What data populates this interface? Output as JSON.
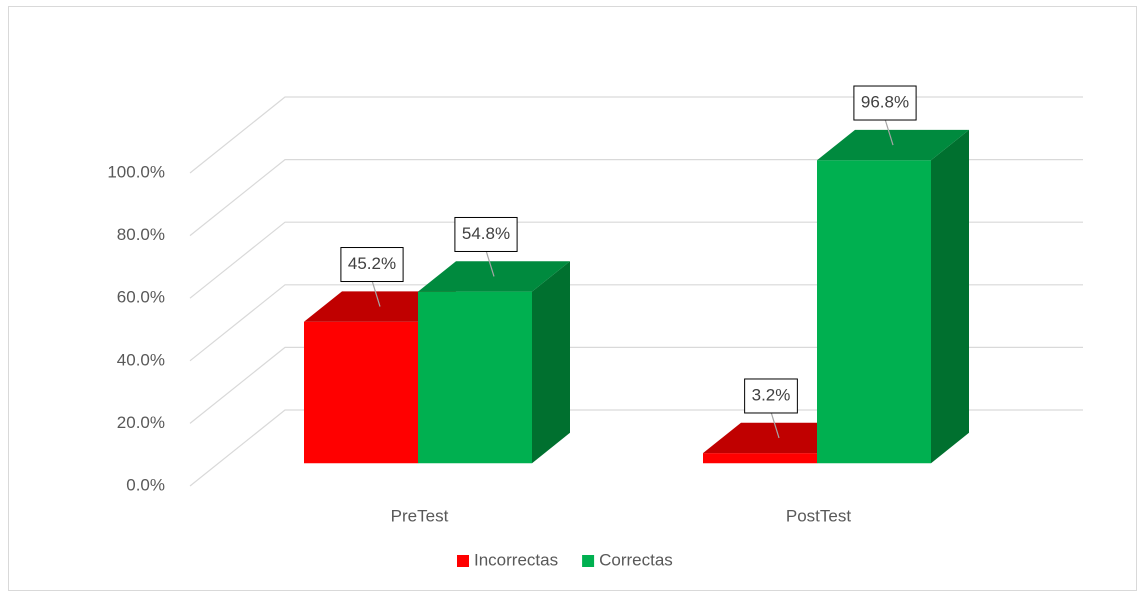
{
  "chart_data": {
    "type": "bar3d",
    "categories": [
      "PreTest",
      "PostTest"
    ],
    "series": [
      {
        "name": "Incorrectas",
        "color": "#ff0000",
        "top_color": "#c00000",
        "side_color": "#a00000",
        "values": [
          45.2,
          3.2
        ],
        "value_labels": [
          "45.2%",
          "3.2%"
        ]
      },
      {
        "name": "Correctas",
        "color": "#00b050",
        "top_color": "#008a3e",
        "side_color": "#00702f",
        "values": [
          54.8,
          96.8
        ],
        "value_labels": [
          "54.8%",
          "96.8%"
        ]
      }
    ],
    "ylim": [
      0,
      100
    ],
    "yticks": [
      {
        "value": 0,
        "label": "0.0%"
      },
      {
        "value": 20,
        "label": "20.0%"
      },
      {
        "value": 40,
        "label": "40.0%"
      },
      {
        "value": 60,
        "label": "60.0%"
      },
      {
        "value": 80,
        "label": "80.0%"
      },
      {
        "value": 100,
        "label": "100.0%"
      }
    ],
    "grid": true,
    "legend": "bottom"
  }
}
